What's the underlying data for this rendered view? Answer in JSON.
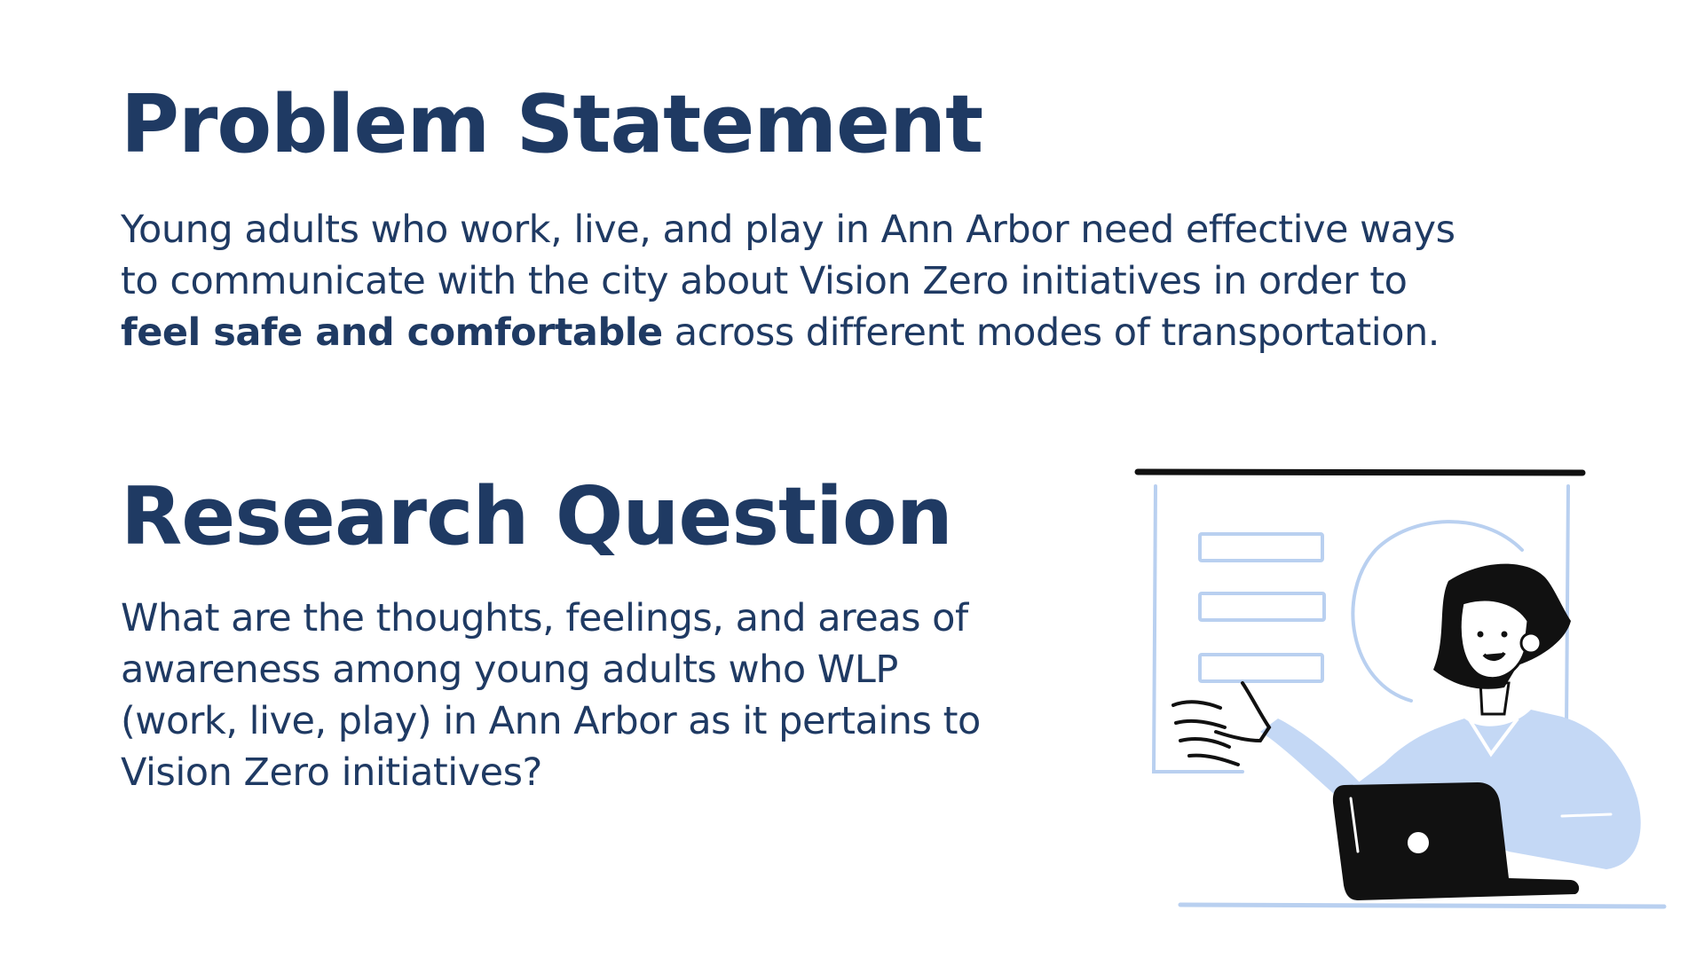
{
  "problem_statement": {
    "heading": "Problem Statement",
    "body_before": "Young adults who work, live, and play in Ann Arbor need effective ways to communicate with the city about Vision Zero initiatives in order to ",
    "body_bold": "feel safe and comfortable",
    "body_after": " across different modes of transportation."
  },
  "research_question": {
    "heading": "Research Question",
    "body": "What are the thoughts, feelings, and areas of awareness among young adults who WLP (work, live, play) in Ann Arbor as it pertains to Vision Zero initiatives?"
  },
  "illustration": {
    "icon": "presenter-with-laptop-illustration",
    "colors": {
      "outline": "#111111",
      "accent": "#c4d8f5",
      "light_line": "#b9d0f0"
    }
  }
}
